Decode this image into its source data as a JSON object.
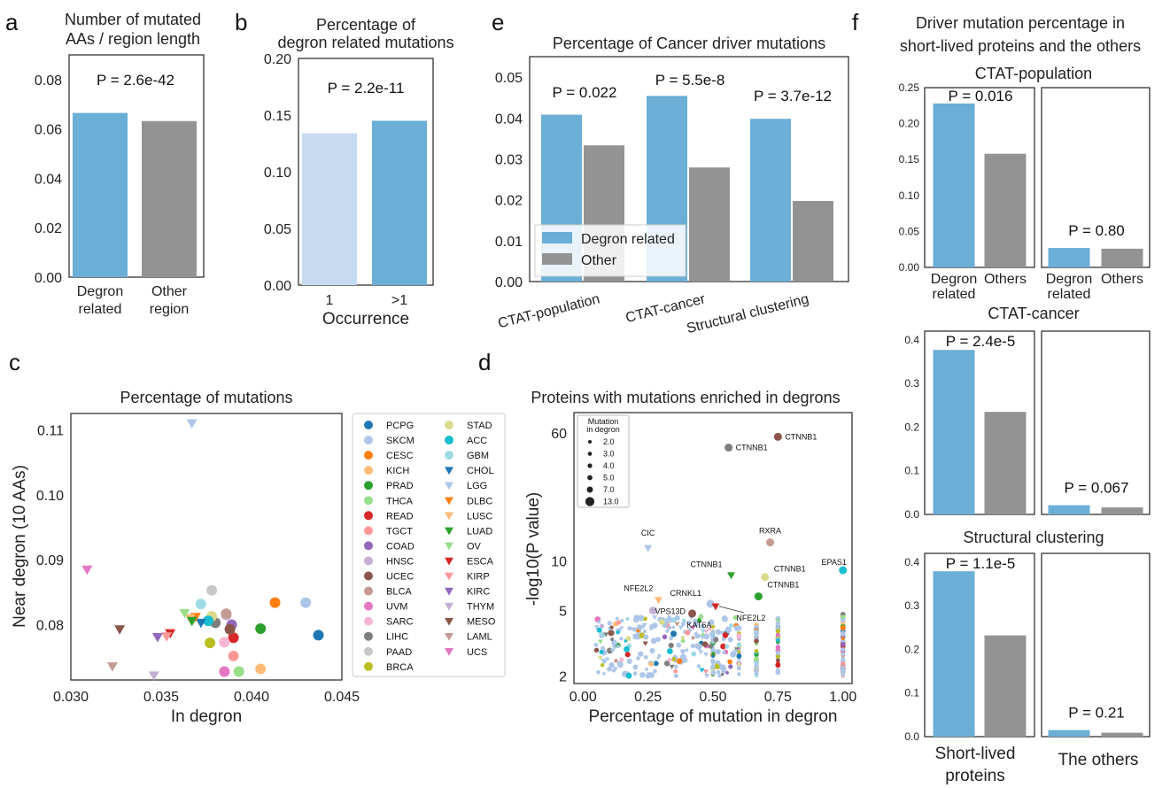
{
  "colors": {
    "degron": "#6baed6",
    "other": "#939393",
    "light_blue": "#c6dbef",
    "frame": "#222222"
  },
  "chart_data": [
    {
      "panel": "a",
      "type": "bar",
      "title": [
        "Number of mutated",
        "AAs / region length"
      ],
      "categories": [
        [
          "Degron",
          "related"
        ],
        [
          "Other",
          "region"
        ]
      ],
      "values": [
        0.0665,
        0.0632
      ],
      "ylim": [
        0,
        0.09
      ],
      "yticks": [
        "0.00",
        "0.02",
        "0.04",
        "0.06",
        "0.08"
      ],
      "annotations": [
        "P = 2.6e-42"
      ]
    },
    {
      "panel": "b",
      "type": "bar",
      "title": [
        "Percentage of",
        "degron related mutations"
      ],
      "categories": [
        "1",
        ">1"
      ],
      "values": [
        0.134,
        0.145
      ],
      "xlabel": "Occurrence",
      "ylim": [
        0,
        0.2
      ],
      "yticks": [
        "0.00",
        "0.05",
        "0.10",
        "0.15",
        "0.20"
      ],
      "annotations": [
        "P = 2.2e-11"
      ]
    },
    {
      "panel": "e",
      "type": "bar",
      "title": "Percentage of Cancer driver mutations",
      "categories": [
        "CTAT-population",
        "CTAT-cancer",
        "Structural clustering"
      ],
      "series": [
        {
          "name": "Degron related",
          "values": [
            0.0408,
            0.0454,
            0.0398
          ]
        },
        {
          "name": "Other",
          "values": [
            0.0333,
            0.0279,
            0.0197
          ]
        }
      ],
      "ylim": [
        0,
        0.055
      ],
      "yticks": [
        "0.00",
        "0.01",
        "0.02",
        "0.03",
        "0.04",
        "0.05"
      ],
      "annotations": [
        "P = 0.022",
        "P = 5.5e-8",
        "P = 3.7e-12"
      ],
      "legend": "lower-left"
    },
    {
      "panel": "f",
      "type": "bar",
      "title": [
        "Driver mutation percentage in",
        "short-lived proteins and the others"
      ],
      "group_labels": [
        "Short-lived",
        "proteins",
        "The others"
      ],
      "subplots": [
        {
          "title": "CTAT-population",
          "ylim": [
            0,
            0.25
          ],
          "yticks": [
            "0.00",
            "0.05",
            "0.10",
            "0.15",
            "0.20",
            "0.25"
          ],
          "left": [
            0.228,
            0.158
          ],
          "right": [
            0.027,
            0.026
          ],
          "p_left": "P = 0.016",
          "p_right": "P = 0.80",
          "xticklabels": [
            [
              "Degron",
              "related"
            ],
            [
              "Others"
            ],
            [
              "Degron",
              "related"
            ],
            [
              "Others"
            ]
          ]
        },
        {
          "title": "CTAT-cancer",
          "ylim": [
            0,
            0.42
          ],
          "yticks": [
            "0.0",
            "0.1",
            "0.2",
            "0.3",
            "0.4"
          ],
          "left": [
            0.377,
            0.235
          ],
          "right": [
            0.021,
            0.016
          ],
          "p_left": "P = 2.4e-5",
          "p_right": "P = 0.067"
        },
        {
          "title": "Structural clustering",
          "ylim": [
            0,
            0.42
          ],
          "yticks": [
            "0.0",
            "0.1",
            "0.2",
            "0.3",
            "0.4"
          ],
          "left": [
            0.379,
            0.232
          ],
          "right": [
            0.015,
            0.009
          ],
          "p_left": "P = 1.1e-5",
          "p_right": "P = 0.21"
        }
      ]
    },
    {
      "panel": "c",
      "type": "scatter",
      "title": "Percentage of mutations",
      "xlabel": "In degron",
      "ylabel": "Near degron (10 AAs)",
      "xlim": [
        0.03,
        0.045
      ],
      "ylim": [
        0.0715,
        0.1125
      ],
      "xticks": [
        0.03,
        0.035,
        0.04,
        0.045
      ],
      "xticklabels": [
        "0.030",
        "0.035",
        "0.040",
        "0.045"
      ],
      "yticks": [
        0.08,
        0.09,
        0.1,
        0.11
      ],
      "yticklabels": [
        "0.08",
        "0.09",
        "0.10",
        "0.11"
      ],
      "legend_columns": [
        [
          "PCPG",
          "SKCM",
          "CESC",
          "KICH",
          "PRAD",
          "THCA",
          "READ",
          "TGCT",
          "COAD",
          "HNSC",
          "UCEC",
          "BLCA",
          "UVM",
          "SARC",
          "LIHC",
          "PAAD",
          "BRCA"
        ],
        [
          "STAD",
          "ACC",
          "GBM",
          "CHOL",
          "LGG",
          "DLBC",
          "LUSC",
          "LUAD",
          "OV",
          "ESCA",
          "KIRP",
          "KIRC",
          "THYM",
          "MESO",
          "LAML",
          "UCS"
        ]
      ],
      "series": [
        {
          "name": "PCPG",
          "color": "#1f77b4",
          "marker": "circle",
          "x": 0.0437,
          "y": 0.0784
        },
        {
          "name": "SKCM",
          "color": "#aec7e8",
          "marker": "circle",
          "x": 0.043,
          "y": 0.0834
        },
        {
          "name": "CESC",
          "color": "#ff7f0e",
          "marker": "circle",
          "x": 0.0413,
          "y": 0.0834
        },
        {
          "name": "KICH",
          "color": "#ffbb78",
          "marker": "circle",
          "x": 0.0405,
          "y": 0.0732
        },
        {
          "name": "PRAD",
          "color": "#2ca02c",
          "marker": "circle",
          "x": 0.0405,
          "y": 0.0794
        },
        {
          "name": "THCA",
          "color": "#98df8a",
          "marker": "circle",
          "x": 0.0393,
          "y": 0.0728
        },
        {
          "name": "READ",
          "color": "#d62728",
          "marker": "circle",
          "x": 0.039,
          "y": 0.078
        },
        {
          "name": "TGCT",
          "color": "#ff9896",
          "marker": "circle",
          "x": 0.039,
          "y": 0.0752
        },
        {
          "name": "COAD",
          "color": "#9467bd",
          "marker": "circle",
          "x": 0.0389,
          "y": 0.08
        },
        {
          "name": "HNSC",
          "color": "#c5b0d5",
          "marker": "circle",
          "x": 0.0386,
          "y": 0.0815
        },
        {
          "name": "UCEC",
          "color": "#8c564b",
          "marker": "circle",
          "x": 0.0388,
          "y": 0.0793
        },
        {
          "name": "BLCA",
          "color": "#c49c94",
          "marker": "circle",
          "x": 0.0386,
          "y": 0.0817
        },
        {
          "name": "UVM",
          "color": "#e377c2",
          "marker": "circle",
          "x": 0.0385,
          "y": 0.0728
        },
        {
          "name": "SARC",
          "color": "#f7b6d2",
          "marker": "circle",
          "x": 0.0385,
          "y": 0.0773
        },
        {
          "name": "LIHC",
          "color": "#7f7f7f",
          "marker": "circle",
          "x": 0.038,
          "y": 0.0803
        },
        {
          "name": "PAAD",
          "color": "#c7c7c7",
          "marker": "circle",
          "x": 0.0378,
          "y": 0.0853
        },
        {
          "name": "BRCA",
          "color": "#bcbd22",
          "marker": "circle",
          "x": 0.0377,
          "y": 0.0772
        },
        {
          "name": "STAD",
          "color": "#dbdb8d",
          "marker": "circle",
          "x": 0.0378,
          "y": 0.0813
        },
        {
          "name": "ACC",
          "color": "#17becf",
          "marker": "circle",
          "x": 0.0376,
          "y": 0.0806
        },
        {
          "name": "GBM",
          "color": "#9edae5",
          "marker": "circle",
          "x": 0.0372,
          "y": 0.0832
        },
        {
          "name": "CHOL",
          "color": "#1f77b4",
          "marker": "tri",
          "x": 0.0372,
          "y": 0.0803
        },
        {
          "name": "LGG",
          "color": "#aec7e8",
          "marker": "tri",
          "x": 0.0367,
          "y": 0.111
        },
        {
          "name": "DLBC",
          "color": "#ff7f0e",
          "marker": "tri",
          "x": 0.0369,
          "y": 0.0812
        },
        {
          "name": "LUSC",
          "color": "#ffbb78",
          "marker": "tri",
          "x": 0.0366,
          "y": 0.081
        },
        {
          "name": "LUAD",
          "color": "#2ca02c",
          "marker": "tri",
          "x": 0.0367,
          "y": 0.0806
        },
        {
          "name": "OV",
          "color": "#98df8a",
          "marker": "tri",
          "x": 0.0363,
          "y": 0.0818
        },
        {
          "name": "ESCA",
          "color": "#d62728",
          "marker": "tri",
          "x": 0.0355,
          "y": 0.0787
        },
        {
          "name": "KIRP",
          "color": "#ff9896",
          "marker": "tri",
          "x": 0.0353,
          "y": 0.0782
        },
        {
          "name": "KIRC",
          "color": "#9467bd",
          "marker": "tri",
          "x": 0.0348,
          "y": 0.0781
        },
        {
          "name": "THYM",
          "color": "#c5b0d5",
          "marker": "tri",
          "x": 0.0346,
          "y": 0.0722
        },
        {
          "name": "MESO",
          "color": "#8c564b",
          "marker": "tri",
          "x": 0.0327,
          "y": 0.0793
        },
        {
          "name": "LAML",
          "color": "#c49c94",
          "marker": "tri",
          "x": 0.0323,
          "y": 0.0736
        },
        {
          "name": "UCS",
          "color": "#e377c2",
          "marker": "tri",
          "x": 0.0309,
          "y": 0.0885
        }
      ]
    },
    {
      "panel": "d",
      "type": "scatter",
      "title": "Proteins with mutations enriched in degrons",
      "xlabel": "Percentage of mutation in degron",
      "ylabel": "-log10(P value)",
      "xlim": [
        -0.035,
        1.035
      ],
      "ylim_log": [
        1.8,
        80
      ],
      "xticks": [
        0,
        0.25,
        0.5,
        0.75,
        1.0
      ],
      "xticklabels": [
        "0.00",
        "0.25",
        "0.50",
        "0.75",
        "1.00"
      ],
      "yticks": [
        2,
        5,
        10,
        60
      ],
      "yticklabels": [
        "2",
        "5",
        "10",
        "60"
      ],
      "size_legend_title": [
        "Mutation",
        "in degron"
      ],
      "size_legend": [
        "2.0",
        "3.0",
        "4.0",
        "5.0",
        "7.0",
        "13.0"
      ],
      "labeled_points": [
        {
          "label": "CTNNB1",
          "x": 0.56,
          "y": 49,
          "color": "#7f7f7f",
          "marker": "circle"
        },
        {
          "label": "CTNNB1",
          "x": 0.75,
          "y": 57,
          "color": "#8c564b",
          "marker": "circle"
        },
        {
          "label": "RXRA",
          "x": 0.72,
          "y": 13,
          "color": "#c49c94",
          "marker": "circle"
        },
        {
          "label": "CIC",
          "x": 0.25,
          "y": 12,
          "color": "#aec7e8",
          "marker": "tri"
        },
        {
          "label": "EPAS1",
          "x": 1.0,
          "y": 8.8,
          "color": "#17becf",
          "marker": "circle"
        },
        {
          "label": "CTNNB1",
          "x": 0.57,
          "y": 8.2,
          "color": "#2ca02c",
          "marker": "tri"
        },
        {
          "label": "CTNNB1",
          "x": 0.7,
          "y": 8.0,
          "color": "#dbdb8d",
          "marker": "circle"
        },
        {
          "label": "CTNNB1",
          "x": 0.675,
          "y": 6.1,
          "color": "#2ca02c",
          "marker": "circle"
        },
        {
          "label": "NFE2L2",
          "x": 0.29,
          "y": 5.8,
          "color": "#ffbb78",
          "marker": "tri"
        },
        {
          "label": "CRNKL1",
          "x": 0.49,
          "y": 5.5,
          "color": "#aec7e8",
          "marker": "circle"
        },
        {
          "label": "NFE2L2",
          "x": 0.51,
          "y": 5.3,
          "color": "#d62728",
          "marker": "tri"
        },
        {
          "label": "VPS13D",
          "x": 0.27,
          "y": 5.0,
          "color": "#c5b0d5",
          "marker": "circle"
        },
        {
          "label": "KAT6A",
          "x": 0.42,
          "y": 4.8,
          "color": "#8c564b",
          "marker": "circle"
        }
      ]
    }
  ]
}
